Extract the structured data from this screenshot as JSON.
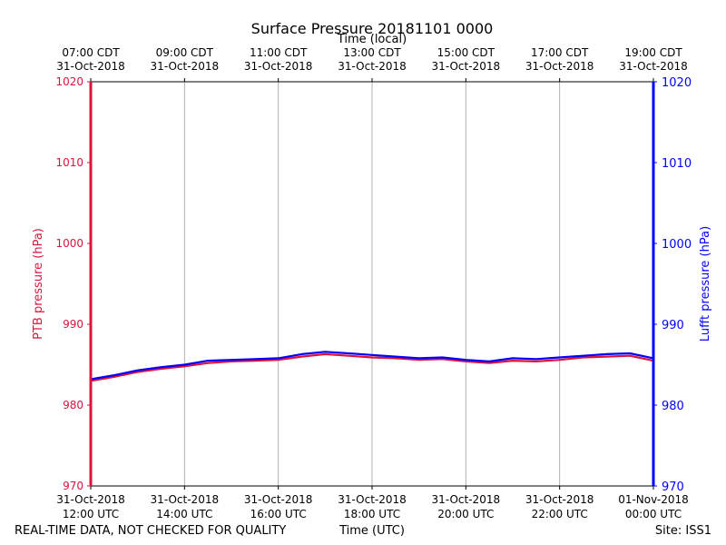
{
  "chart_data": {
    "type": "line",
    "title": "Surface Pressure 20181101 0000",
    "xlabel_bottom": "Time (UTC)",
    "xlabel_top": "Time (local)",
    "ylabel_left": "PTB pressure (hPa)",
    "ylabel_right": "Lufft pressure (hPa)",
    "ylim": [
      970,
      1020
    ],
    "yticks": [
      970,
      980,
      990,
      1000,
      1010,
      1020
    ],
    "xlim_hours_utc": [
      12,
      24
    ],
    "grid": "vertical",
    "bottom_ticks": [
      {
        "hour": 12,
        "line1": "31-Oct-2018",
        "line2": "12:00 UTC"
      },
      {
        "hour": 14,
        "line1": "31-Oct-2018",
        "line2": "14:00 UTC"
      },
      {
        "hour": 16,
        "line1": "31-Oct-2018",
        "line2": "16:00 UTC"
      },
      {
        "hour": 18,
        "line1": "31-Oct-2018",
        "line2": "18:00 UTC"
      },
      {
        "hour": 20,
        "line1": "31-Oct-2018",
        "line2": "20:00 UTC"
      },
      {
        "hour": 22,
        "line1": "31-Oct-2018",
        "line2": "22:00 UTC"
      },
      {
        "hour": 24,
        "line1": "01-Nov-2018",
        "line2": "00:00 UTC"
      }
    ],
    "top_ticks": [
      {
        "hour": 12,
        "line1": "07:00 CDT",
        "line2": "31-Oct-2018"
      },
      {
        "hour": 14,
        "line1": "09:00 CDT",
        "line2": "31-Oct-2018"
      },
      {
        "hour": 16,
        "line1": "11:00 CDT",
        "line2": "31-Oct-2018"
      },
      {
        "hour": 18,
        "line1": "13:00 CDT",
        "line2": "31-Oct-2018"
      },
      {
        "hour": 20,
        "line1": "15:00 CDT",
        "line2": "31-Oct-2018"
      },
      {
        "hour": 22,
        "line1": "17:00 CDT",
        "line2": "31-Oct-2018"
      },
      {
        "hour": 24,
        "line1": "19:00 CDT",
        "line2": "31-Oct-2018"
      }
    ],
    "series": [
      {
        "name": "PTB",
        "color": "#dc143c",
        "axis": "left",
        "x": [
          12.0,
          12.5,
          13.0,
          13.5,
          14.0,
          14.5,
          15.0,
          15.5,
          16.0,
          16.5,
          17.0,
          17.5,
          18.0,
          18.5,
          19.0,
          19.5,
          20.0,
          20.5,
          21.0,
          21.5,
          22.0,
          22.5,
          23.0,
          23.5,
          24.0
        ],
        "y": [
          983.0,
          983.5,
          984.1,
          984.5,
          984.8,
          985.2,
          985.4,
          985.5,
          985.6,
          986.0,
          986.3,
          986.1,
          985.9,
          985.8,
          985.6,
          985.7,
          985.4,
          985.2,
          985.5,
          985.4,
          985.6,
          985.9,
          986.0,
          986.1,
          985.5
        ]
      },
      {
        "name": "Lufft",
        "color": "#0000ff",
        "axis": "right",
        "x": [
          12.0,
          12.5,
          13.0,
          13.5,
          14.0,
          14.5,
          15.0,
          15.5,
          16.0,
          16.5,
          17.0,
          17.5,
          18.0,
          18.5,
          19.0,
          19.5,
          20.0,
          20.5,
          21.0,
          21.5,
          22.0,
          22.5,
          23.0,
          23.5,
          24.0
        ],
        "y": [
          983.2,
          983.7,
          984.3,
          984.7,
          985.0,
          985.5,
          985.6,
          985.7,
          985.8,
          986.3,
          986.6,
          986.4,
          986.2,
          986.0,
          985.8,
          985.9,
          985.6,
          985.4,
          985.8,
          985.7,
          985.9,
          986.1,
          986.3,
          986.4,
          985.8
        ]
      }
    ]
  },
  "footer": {
    "left": "REAL-TIME DATA, NOT CHECKED FOR QUALITY",
    "right": "Site: ISS1"
  }
}
